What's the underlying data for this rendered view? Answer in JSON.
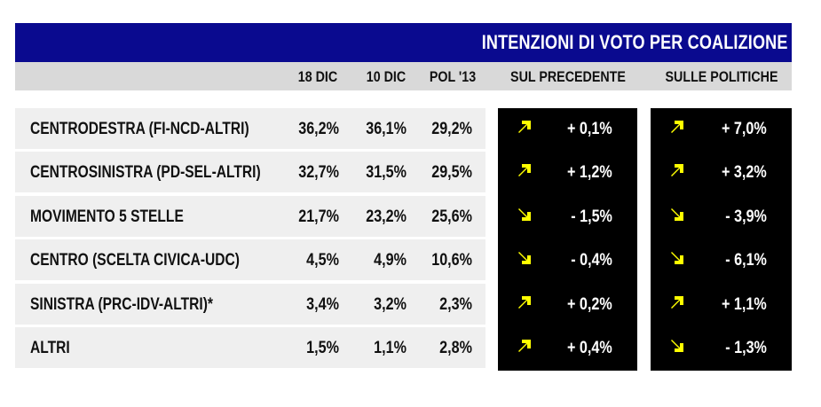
{
  "title": "INTENZIONI DI VOTO PER COALIZIONE",
  "colors": {
    "banner": "#0a0a8f",
    "header": "#d9d9d9",
    "row": "#efefef",
    "arrow": "#ffff00",
    "delta_bg": "#000000"
  },
  "chart_data": {
    "type": "table",
    "title": "INTENZIONI DI VOTO PER COALIZIONE",
    "columns": [
      "18 DIC",
      "10 DIC",
      "POL '13",
      "SUL PRECEDENTE",
      "SULLE POLITICHE"
    ],
    "rows": [
      {
        "label": "CENTRODESTRA (FI-NCD-ALTRI)",
        "values": [
          "36,2%",
          "36,1%",
          "29,2%"
        ],
        "sul_precedente": "+ 0,1%",
        "dir_prec": "up",
        "sulle_politiche": "+ 7,0%",
        "dir_pol": "up"
      },
      {
        "label": "CENTROSINISTRA (PD-SEL-ALTRI)",
        "values": [
          "32,7%",
          "31,5%",
          "29,5%"
        ],
        "sul_precedente": "+ 1,2%",
        "dir_prec": "up",
        "sulle_politiche": "+ 3,2%",
        "dir_pol": "up"
      },
      {
        "label": "MOVIMENTO 5 STELLE",
        "values": [
          "21,7%",
          "23,2%",
          "25,6%"
        ],
        "sul_precedente": "- 1,5%",
        "dir_prec": "down",
        "sulle_politiche": "- 3,9%",
        "dir_pol": "down"
      },
      {
        "label": "CENTRO (SCELTA CIVICA-UDC)",
        "values": [
          "4,5%",
          "4,9%",
          "10,6%"
        ],
        "sul_precedente": "- 0,4%",
        "dir_prec": "down",
        "sulle_politiche": "- 6,1%",
        "dir_pol": "down"
      },
      {
        "label": "SINISTRA (PRC-IDV-ALTRI)*",
        "values": [
          "3,4%",
          "3,2%",
          "2,3%"
        ],
        "sul_precedente": "+ 0,2%",
        "dir_prec": "up",
        "sulle_politiche": "+ 1,1%",
        "dir_pol": "up"
      },
      {
        "label": "ALTRI",
        "values": [
          "1,5%",
          "1,1%",
          "2,8%"
        ],
        "sul_precedente": "+ 0,4%",
        "dir_prec": "up",
        "sulle_politiche": "- 1,3%",
        "dir_pol": "down"
      }
    ]
  }
}
